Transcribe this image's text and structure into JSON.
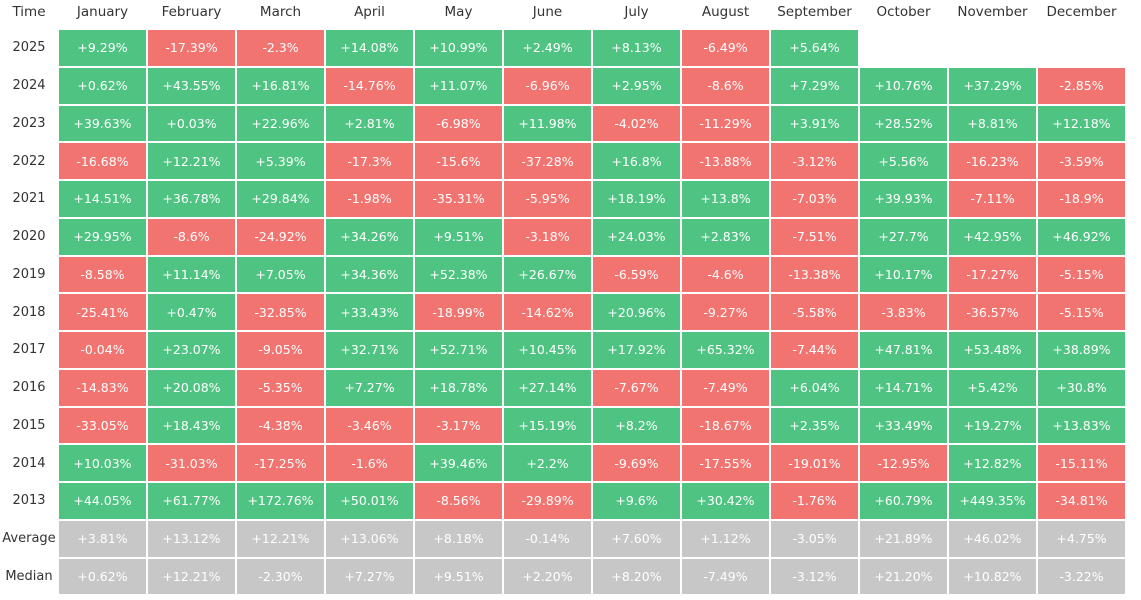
{
  "table": {
    "header": [
      "Time",
      "January",
      "February",
      "March",
      "April",
      "May",
      "June",
      "July",
      "August",
      "September",
      "October",
      "November",
      "December"
    ],
    "colors": {
      "positive": "#4fc482",
      "negative": "#f27471",
      "summary": "#c7c7c7"
    },
    "rows": [
      {
        "label": "2025",
        "cells": [
          "+9.29%",
          "-17.39%",
          "-2.3%",
          "+14.08%",
          "+10.99%",
          "+2.49%",
          "+8.13%",
          "-6.49%",
          "+5.64%"
        ]
      },
      {
        "label": "2024",
        "cells": [
          "+0.62%",
          "+43.55%",
          "+16.81%",
          "-14.76%",
          "+11.07%",
          "-6.96%",
          "+2.95%",
          "-8.6%",
          "+7.29%",
          "+10.76%",
          "+37.29%",
          "-2.85%"
        ]
      },
      {
        "label": "2023",
        "cells": [
          "+39.63%",
          "+0.03%",
          "+22.96%",
          "+2.81%",
          "-6.98%",
          "+11.98%",
          "-4.02%",
          "-11.29%",
          "+3.91%",
          "+28.52%",
          "+8.81%",
          "+12.18%"
        ]
      },
      {
        "label": "2022",
        "cells": [
          "-16.68%",
          "+12.21%",
          "+5.39%",
          "-17.3%",
          "-15.6%",
          "-37.28%",
          "+16.8%",
          "-13.88%",
          "-3.12%",
          "+5.56%",
          "-16.23%",
          "-3.59%"
        ]
      },
      {
        "label": "2021",
        "cells": [
          "+14.51%",
          "+36.78%",
          "+29.84%",
          "-1.98%",
          "-35.31%",
          "-5.95%",
          "+18.19%",
          "+13.8%",
          "-7.03%",
          "+39.93%",
          "-7.11%",
          "-18.9%"
        ]
      },
      {
        "label": "2020",
        "cells": [
          "+29.95%",
          "-8.6%",
          "-24.92%",
          "+34.26%",
          "+9.51%",
          "-3.18%",
          "+24.03%",
          "+2.83%",
          "-7.51%",
          "+27.7%",
          "+42.95%",
          "+46.92%"
        ]
      },
      {
        "label": "2019",
        "cells": [
          "-8.58%",
          "+11.14%",
          "+7.05%",
          "+34.36%",
          "+52.38%",
          "+26.67%",
          "-6.59%",
          "-4.6%",
          "-13.38%",
          "+10.17%",
          "-17.27%",
          "-5.15%"
        ]
      },
      {
        "label": "2018",
        "cells": [
          "-25.41%",
          "+0.47%",
          "-32.85%",
          "+33.43%",
          "-18.99%",
          "-14.62%",
          "+20.96%",
          "-9.27%",
          "-5.58%",
          "-3.83%",
          "-36.57%",
          "-5.15%"
        ]
      },
      {
        "label": "2017",
        "cells": [
          "-0.04%",
          "+23.07%",
          "-9.05%",
          "+32.71%",
          "+52.71%",
          "+10.45%",
          "+17.92%",
          "+65.32%",
          "-7.44%",
          "+47.81%",
          "+53.48%",
          "+38.89%"
        ]
      },
      {
        "label": "2016",
        "cells": [
          "-14.83%",
          "+20.08%",
          "-5.35%",
          "+7.27%",
          "+18.78%",
          "+27.14%",
          "-7.67%",
          "-7.49%",
          "+6.04%",
          "+14.71%",
          "+5.42%",
          "+30.8%"
        ]
      },
      {
        "label": "2015",
        "cells": [
          "-33.05%",
          "+18.43%",
          "-4.38%",
          "-3.46%",
          "-3.17%",
          "+15.19%",
          "+8.2%",
          "-18.67%",
          "+2.35%",
          "+33.49%",
          "+19.27%",
          "+13.83%"
        ]
      },
      {
        "label": "2014",
        "cells": [
          "+10.03%",
          "-31.03%",
          "-17.25%",
          "-1.6%",
          "+39.46%",
          "+2.2%",
          "-9.69%",
          "-17.55%",
          "-19.01%",
          "-12.95%",
          "+12.82%",
          "-15.11%"
        ]
      },
      {
        "label": "2013",
        "cells": [
          "+44.05%",
          "+61.77%",
          "+172.76%",
          "+50.01%",
          "-8.56%",
          "-29.89%",
          "+9.6%",
          "+30.42%",
          "-1.76%",
          "+60.79%",
          "+449.35%",
          "-34.81%"
        ]
      }
    ],
    "summary_rows": [
      {
        "label": "Average",
        "cells": [
          "+3.81%",
          "+13.12%",
          "+12.21%",
          "+13.06%",
          "+8.18%",
          "-0.14%",
          "+7.60%",
          "+1.12%",
          "-3.05%",
          "+21.89%",
          "+46.02%",
          "+4.75%"
        ]
      },
      {
        "label": "Median",
        "cells": [
          "+0.62%",
          "+12.21%",
          "-2.30%",
          "+7.27%",
          "+9.51%",
          "+2.20%",
          "+8.20%",
          "-7.49%",
          "-3.12%",
          "+21.20%",
          "+10.82%",
          "-3.22%"
        ]
      }
    ]
  }
}
